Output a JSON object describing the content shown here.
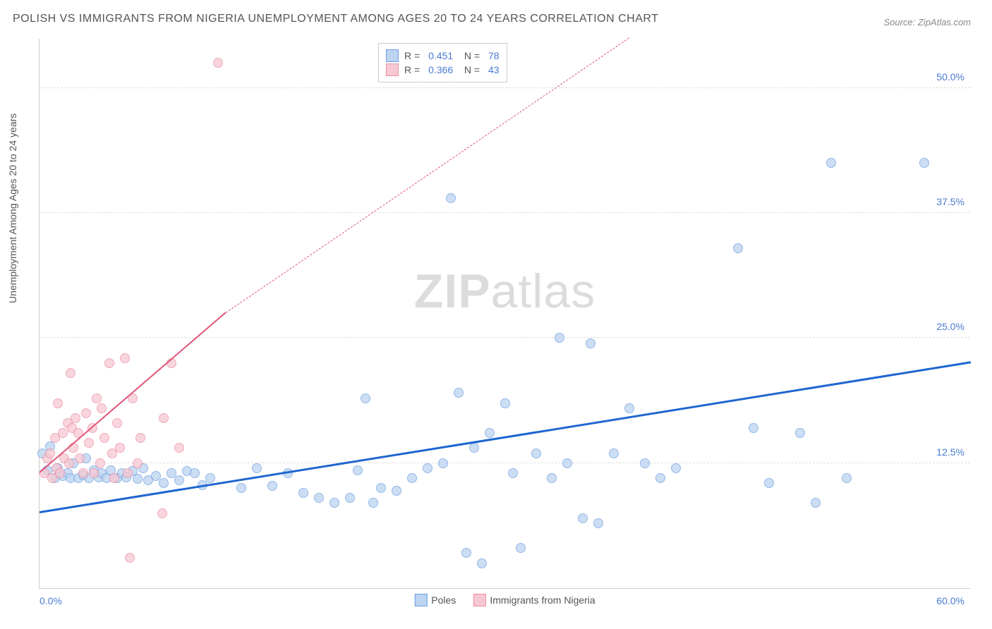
{
  "title": "POLISH VS IMMIGRANTS FROM NIGERIA UNEMPLOYMENT AMONG AGES 20 TO 24 YEARS CORRELATION CHART",
  "source": "Source: ZipAtlas.com",
  "ylabel": "Unemployment Among Ages 20 to 24 years",
  "watermark_bold": "ZIP",
  "watermark_light": "atlas",
  "chart": {
    "type": "scatter",
    "xlim": [
      0,
      60
    ],
    "ylim": [
      0,
      55
    ],
    "yticks": [
      {
        "v": 12.5,
        "label": "12.5%"
      },
      {
        "v": 25.0,
        "label": "25.0%"
      },
      {
        "v": 37.5,
        "label": "37.5%"
      },
      {
        "v": 50.0,
        "label": "50.0%"
      }
    ],
    "x_left_label": "0.0%",
    "x_right_label": "60.0%",
    "background_color": "#ffffff",
    "grid_color": "#dddddd",
    "series": [
      {
        "name": "Poles",
        "fill": "#bcd4f0",
        "stroke": "#6f9fe0",
        "opacity": 0.75,
        "radius": 7,
        "R": "0.451",
        "N": "78",
        "trend": {
          "x1": 0,
          "y1": 7.5,
          "x2": 60,
          "y2": 22.5,
          "color": "#1e66d0",
          "width": 3,
          "dash": false
        },
        "points": [
          [
            0.2,
            13.5
          ],
          [
            0.5,
            11.8
          ],
          [
            0.7,
            14.2
          ],
          [
            1.0,
            11.0
          ],
          [
            1.2,
            12.0
          ],
          [
            1.5,
            11.2
          ],
          [
            1.8,
            11.5
          ],
          [
            2.0,
            11.0
          ],
          [
            2.2,
            12.5
          ],
          [
            2.5,
            11.0
          ],
          [
            2.8,
            11.3
          ],
          [
            3.0,
            13.0
          ],
          [
            3.2,
            11.0
          ],
          [
            3.5,
            11.8
          ],
          [
            3.8,
            11.1
          ],
          [
            4.0,
            11.5
          ],
          [
            4.3,
            11.0
          ],
          [
            4.6,
            11.8
          ],
          [
            5.0,
            11.0
          ],
          [
            5.3,
            11.5
          ],
          [
            5.6,
            11.1
          ],
          [
            6.0,
            11.7
          ],
          [
            6.3,
            10.9
          ],
          [
            6.7,
            12.0
          ],
          [
            7.0,
            10.8
          ],
          [
            7.5,
            11.2
          ],
          [
            8.0,
            10.5
          ],
          [
            8.5,
            11.5
          ],
          [
            9.0,
            10.8
          ],
          [
            9.5,
            11.7
          ],
          [
            10.0,
            11.5
          ],
          [
            10.5,
            10.3
          ],
          [
            11.0,
            11.0
          ],
          [
            13.0,
            10.0
          ],
          [
            14.0,
            12.0
          ],
          [
            15.0,
            10.2
          ],
          [
            16.0,
            11.5
          ],
          [
            17.0,
            9.5
          ],
          [
            18.0,
            9.0
          ],
          [
            19.0,
            8.5
          ],
          [
            20.0,
            9.0
          ],
          [
            20.5,
            11.8
          ],
          [
            21.0,
            19.0
          ],
          [
            21.5,
            8.5
          ],
          [
            22.0,
            10.0
          ],
          [
            23.0,
            9.7
          ],
          [
            24.0,
            11.0
          ],
          [
            25.0,
            12.0
          ],
          [
            26.0,
            12.5
          ],
          [
            26.5,
            39.0
          ],
          [
            27.0,
            19.5
          ],
          [
            27.5,
            3.5
          ],
          [
            28.0,
            14.0
          ],
          [
            28.5,
            2.5
          ],
          [
            29.0,
            15.5
          ],
          [
            30.0,
            18.5
          ],
          [
            30.5,
            11.5
          ],
          [
            31.0,
            4.0
          ],
          [
            32.0,
            13.5
          ],
          [
            33.0,
            11.0
          ],
          [
            33.5,
            25.0
          ],
          [
            34.0,
            12.5
          ],
          [
            35.0,
            7.0
          ],
          [
            35.5,
            24.5
          ],
          [
            36.0,
            6.5
          ],
          [
            37.0,
            13.5
          ],
          [
            38.0,
            18.0
          ],
          [
            39.0,
            12.5
          ],
          [
            40.0,
            11.0
          ],
          [
            41.0,
            12.0
          ],
          [
            45.0,
            34.0
          ],
          [
            46.0,
            16.0
          ],
          [
            47.0,
            10.5
          ],
          [
            49.0,
            15.5
          ],
          [
            50.0,
            8.5
          ],
          [
            51.0,
            42.5
          ],
          [
            52.0,
            11.0
          ],
          [
            57.0,
            42.5
          ]
        ]
      },
      {
        "name": "Immigrants from Nigeria",
        "fill": "#f7c8d2",
        "stroke": "#e98fa5",
        "opacity": 0.75,
        "radius": 7,
        "R": "0.366",
        "N": "43",
        "trend": {
          "x1": 0,
          "y1": 11.5,
          "x2": 12,
          "y2": 27.5,
          "color": "#e05577",
          "width": 2,
          "dash": false,
          "ext_x2": 38,
          "ext_y2": 62,
          "ext_dash": true
        },
        "points": [
          [
            0.3,
            11.5
          ],
          [
            0.5,
            13.0
          ],
          [
            0.7,
            13.5
          ],
          [
            0.8,
            11.0
          ],
          [
            1.0,
            15.0
          ],
          [
            1.1,
            12.0
          ],
          [
            1.2,
            18.5
          ],
          [
            1.3,
            11.5
          ],
          [
            1.5,
            15.5
          ],
          [
            1.6,
            13.0
          ],
          [
            1.8,
            16.5
          ],
          [
            1.9,
            12.5
          ],
          [
            2.0,
            21.5
          ],
          [
            2.1,
            16.0
          ],
          [
            2.2,
            14.0
          ],
          [
            2.3,
            17.0
          ],
          [
            2.5,
            15.5
          ],
          [
            2.6,
            13.0
          ],
          [
            2.8,
            11.5
          ],
          [
            3.0,
            17.5
          ],
          [
            3.2,
            14.5
          ],
          [
            3.4,
            16.0
          ],
          [
            3.5,
            11.5
          ],
          [
            3.7,
            19.0
          ],
          [
            3.9,
            12.5
          ],
          [
            4.0,
            18.0
          ],
          [
            4.2,
            15.0
          ],
          [
            4.5,
            22.5
          ],
          [
            4.7,
            13.5
          ],
          [
            4.8,
            11.0
          ],
          [
            5.0,
            16.5
          ],
          [
            5.2,
            14.0
          ],
          [
            5.5,
            23.0
          ],
          [
            5.7,
            11.5
          ],
          [
            5.8,
            3.0
          ],
          [
            6.0,
            19.0
          ],
          [
            6.3,
            12.5
          ],
          [
            6.5,
            15.0
          ],
          [
            7.9,
            7.5
          ],
          [
            8.0,
            17.0
          ],
          [
            8.5,
            22.5
          ],
          [
            9.0,
            14.0
          ],
          [
            11.5,
            52.5
          ]
        ]
      }
    ],
    "legend_bottom": [
      {
        "label": "Poles",
        "fill": "#bcd4f0",
        "stroke": "#6f9fe0"
      },
      {
        "label": "Immigrants from Nigeria",
        "fill": "#f7c8d2",
        "stroke": "#e98fa5"
      }
    ]
  }
}
